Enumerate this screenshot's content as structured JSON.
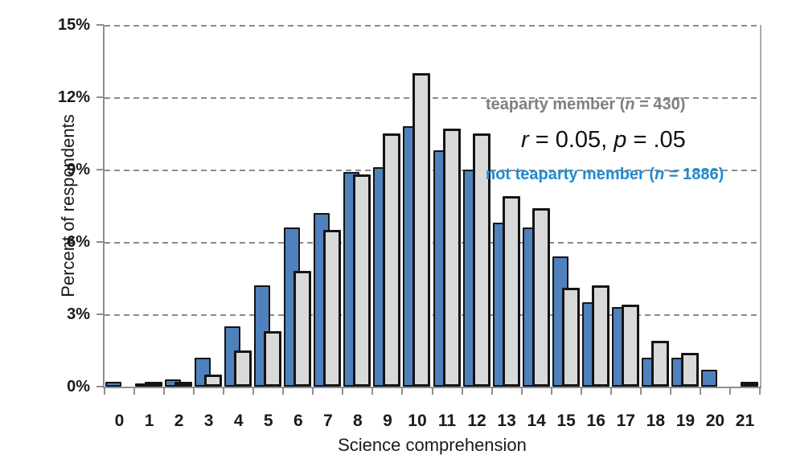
{
  "chart_data": {
    "type": "bar",
    "title": "",
    "xlabel": "Science comprehension",
    "ylabel": "Percent of respondents",
    "categories": [
      "0",
      "1",
      "2",
      "3",
      "4",
      "5",
      "6",
      "7",
      "8",
      "9",
      "10",
      "11",
      "12",
      "13",
      "14",
      "15",
      "16",
      "17",
      "18",
      "19",
      "20",
      "21"
    ],
    "series": [
      {
        "name": "teaparty member (n = 430)",
        "color": "#d9d9d9",
        "values": [
          0,
          0.1,
          0.2,
          0.5,
          1.5,
          2.3,
          4.8,
          6.5,
          8.8,
          10.5,
          13.0,
          10.7,
          10.5,
          7.9,
          7.4,
          4.1,
          4.2,
          3.4,
          1.9,
          1.4,
          0,
          0.1
        ]
      },
      {
        "name": "not teaparty member (n = 1886)",
        "color": "#4f81bd",
        "values": [
          0.2,
          0.1,
          0.3,
          1.2,
          2.5,
          4.2,
          6.6,
          7.2,
          8.9,
          9.1,
          10.8,
          9.8,
          9.0,
          6.8,
          6.6,
          5.4,
          3.5,
          3.3,
          1.2,
          1.2,
          0.7,
          0
        ]
      }
    ],
    "ylim": [
      0,
      15
    ],
    "yticks": [
      "0%",
      "3%",
      "6%",
      "9%",
      "12%",
      "15%"
    ],
    "grid": "horizontal-dashed",
    "legend_position": "top-right",
    "annotation": "r = 0.05, p = .05"
  },
  "axes": {
    "ylabel": "Percent of respondents",
    "xlabel": "Science comprehension"
  },
  "legend": {
    "line1_pre": "teaparty member (",
    "line1_n": "n",
    "line1_post": " = 430)",
    "line2_pre": "not teaparty member (",
    "line2_n": "n",
    "line2_post": " = 1886)"
  },
  "annotation": {
    "r_var": "r",
    "r_rest": " = 0.05, ",
    "p_var": "p",
    "p_rest": " = .05"
  },
  "colors": {
    "teaparty_bar_fill": "#d9d9d9",
    "not_teaparty_bar_fill": "#4f81bd",
    "bar_outline": "#141414",
    "legend_gray_text": "#7f7f7f",
    "legend_blue_text": "#1e8bd2",
    "gridline": "#8a8a8a",
    "axis": "#8f8f8f"
  }
}
